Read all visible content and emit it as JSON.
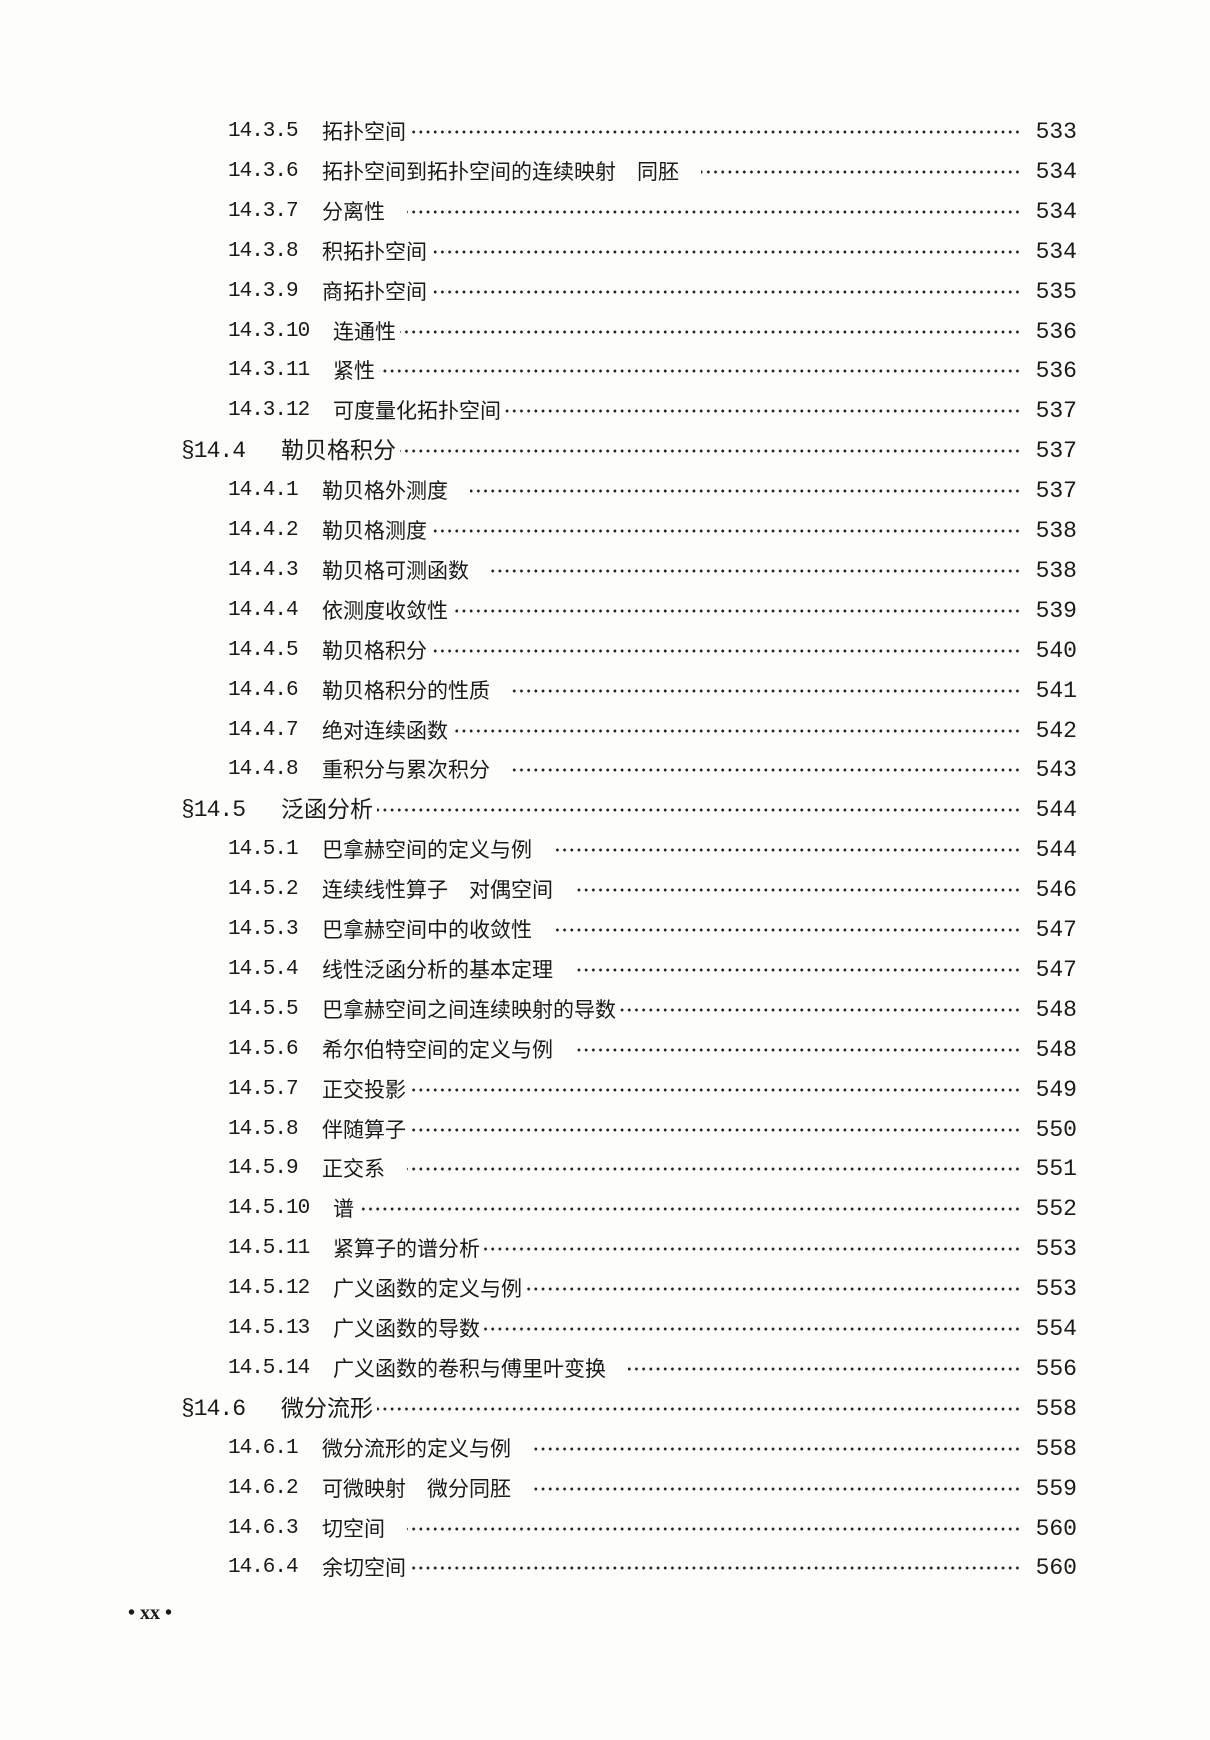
{
  "entries": [
    {
      "level": "sub",
      "num": "14.3.5",
      "title": "拓扑空间",
      "page": "533"
    },
    {
      "level": "sub",
      "num": "14.3.6",
      "title": "拓扑空间到拓扑空间的连续映射　同胚",
      "page": "534"
    },
    {
      "level": "sub",
      "num": "14.3.7",
      "title": "分离性",
      "page": "534"
    },
    {
      "level": "sub",
      "num": "14.3.8",
      "title": "积拓扑空间",
      "page": "534"
    },
    {
      "level": "sub",
      "num": "14.3.9",
      "title": "商拓扑空间",
      "page": "535"
    },
    {
      "level": "sub",
      "num": "14.3.10",
      "title": "连通性",
      "page": "536"
    },
    {
      "level": "sub",
      "num": "14.3.11",
      "title": "紧性",
      "page": "536"
    },
    {
      "level": "sub",
      "num": "14.3.12",
      "title": "可度量化拓扑空间",
      "page": "537"
    },
    {
      "level": "sec",
      "num": "§14.4",
      "title": "勒贝格积分",
      "page": "537"
    },
    {
      "level": "sub",
      "num": "14.4.1",
      "title": "勒贝格外测度",
      "page": "537"
    },
    {
      "level": "sub",
      "num": "14.4.2",
      "title": "勒贝格测度",
      "page": "538"
    },
    {
      "level": "sub",
      "num": "14.4.3",
      "title": "勒贝格可测函数",
      "page": "538"
    },
    {
      "level": "sub",
      "num": "14.4.4",
      "title": "依测度收敛性",
      "page": "539"
    },
    {
      "level": "sub",
      "num": "14.4.5",
      "title": "勒贝格积分",
      "page": "540"
    },
    {
      "level": "sub",
      "num": "14.4.6",
      "title": "勒贝格积分的性质",
      "page": "541"
    },
    {
      "level": "sub",
      "num": "14.4.7",
      "title": "绝对连续函数",
      "page": "542"
    },
    {
      "level": "sub",
      "num": "14.4.8",
      "title": "重积分与累次积分",
      "page": "543"
    },
    {
      "level": "sec",
      "num": "§14.5",
      "title": "泛函分析",
      "page": "544"
    },
    {
      "level": "sub",
      "num": "14.5.1",
      "title": "巴拿赫空间的定义与例",
      "page": "544"
    },
    {
      "level": "sub",
      "num": "14.5.2",
      "title": "连续线性算子　对偶空间",
      "page": "546"
    },
    {
      "level": "sub",
      "num": "14.5.3",
      "title": "巴拿赫空间中的收敛性",
      "page": "547"
    },
    {
      "level": "sub",
      "num": "14.5.4",
      "title": "线性泛函分析的基本定理",
      "page": "547"
    },
    {
      "level": "sub",
      "num": "14.5.5",
      "title": "巴拿赫空间之间连续映射的导数",
      "page": "548"
    },
    {
      "level": "sub",
      "num": "14.5.6",
      "title": "希尔伯特空间的定义与例",
      "page": "548"
    },
    {
      "level": "sub",
      "num": "14.5.7",
      "title": "正交投影",
      "page": "549"
    },
    {
      "level": "sub",
      "num": "14.5.8",
      "title": "伴随算子",
      "page": "550"
    },
    {
      "level": "sub",
      "num": "14.5.9",
      "title": "正交系",
      "page": "551"
    },
    {
      "level": "sub",
      "num": "14.5.10",
      "title": "谱",
      "page": "552"
    },
    {
      "level": "sub",
      "num": "14.5.11",
      "title": "紧算子的谱分析",
      "page": "553"
    },
    {
      "level": "sub",
      "num": "14.5.12",
      "title": "广义函数的定义与例",
      "page": "553"
    },
    {
      "level": "sub",
      "num": "14.5.13",
      "title": "广义函数的导数",
      "page": "554"
    },
    {
      "level": "sub",
      "num": "14.5.14",
      "title": "广义函数的卷积与傅里叶变换",
      "page": "556"
    },
    {
      "level": "sec",
      "num": "§14.6",
      "title": "微分流形",
      "page": "558"
    },
    {
      "level": "sub",
      "num": "14.6.1",
      "title": "微分流形的定义与例",
      "page": "558"
    },
    {
      "level": "sub",
      "num": "14.6.2",
      "title": "可微映射　微分同胚",
      "page": "559"
    },
    {
      "level": "sub",
      "num": "14.6.3",
      "title": "切空间",
      "page": "560"
    },
    {
      "level": "sub",
      "num": "14.6.4",
      "title": "余切空间",
      "page": "560"
    }
  ],
  "footer": "•  xx  •"
}
